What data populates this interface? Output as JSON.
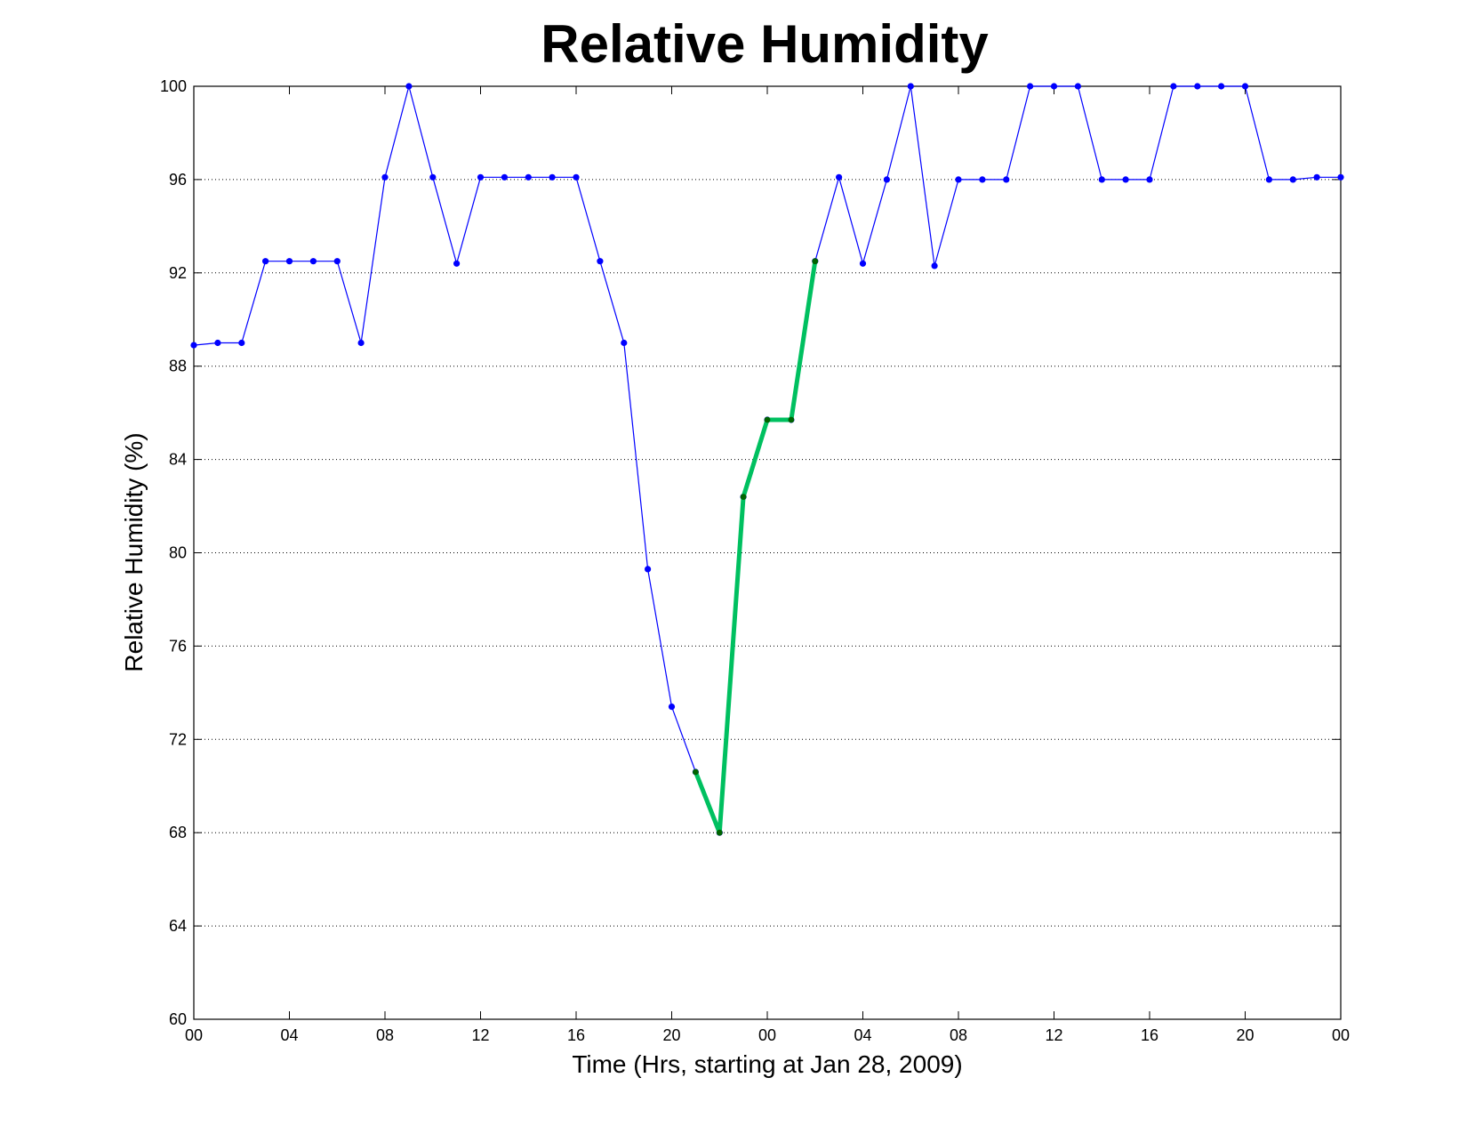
{
  "chart_data": {
    "type": "line",
    "title": "Relative Humidity",
    "xlabel": "Time (Hrs, starting at Jan 28, 2009)",
    "ylabel": "Relative Humidity (%)",
    "xlim": [
      0,
      48
    ],
    "ylim": [
      60,
      100
    ],
    "x_ticks": [
      0,
      4,
      8,
      12,
      16,
      20,
      24,
      28,
      32,
      36,
      40,
      44,
      48
    ],
    "x_tick_labels": [
      "00",
      "04",
      "08",
      "12",
      "16",
      "20",
      "00",
      "04",
      "08",
      "12",
      "16",
      "20",
      "00"
    ],
    "y_ticks": [
      60,
      64,
      68,
      72,
      76,
      80,
      84,
      88,
      92,
      96,
      100
    ],
    "y_tick_labels": [
      "60",
      "64",
      "68",
      "72",
      "76",
      "80",
      "84",
      "88",
      "92",
      "96",
      "100"
    ],
    "grid": "y-dotted",
    "series": [
      {
        "color": "#0000ff",
        "marker_color": "#0000ff",
        "x": [
          0,
          1,
          2,
          3,
          4,
          5,
          6,
          7,
          8,
          9,
          10,
          11,
          12,
          13,
          14,
          15,
          16,
          17,
          18,
          19,
          20,
          21,
          22,
          23,
          24,
          25,
          26,
          27,
          28,
          29,
          30,
          31,
          32,
          33,
          34,
          35,
          36,
          37,
          38,
          39,
          40,
          41,
          42,
          43,
          44,
          45,
          46,
          47,
          48
        ],
        "y": [
          88.9,
          89.0,
          89.0,
          92.5,
          92.5,
          92.5,
          92.5,
          89.0,
          96.1,
          100,
          96.1,
          92.4,
          96.1,
          96.1,
          96.1,
          96.1,
          96.1,
          92.5,
          89.0,
          79.3,
          73.4,
          70.6,
          68.0,
          82.4,
          85.7,
          85.7,
          92.5,
          96.1,
          92.4,
          96.0,
          100,
          92.3,
          96.0,
          96.0,
          96.0,
          100,
          100,
          100,
          96.0,
          96.0,
          96.0,
          100,
          100,
          100,
          100,
          96.0,
          96.0,
          96.1,
          96.1
        ]
      },
      {
        "color": "#00c060",
        "marker_color": "#006400",
        "x": [
          21,
          22,
          23,
          24,
          25,
          26
        ],
        "y": [
          70.6,
          68.0,
          82.4,
          85.7,
          85.7,
          92.5
        ]
      }
    ]
  }
}
